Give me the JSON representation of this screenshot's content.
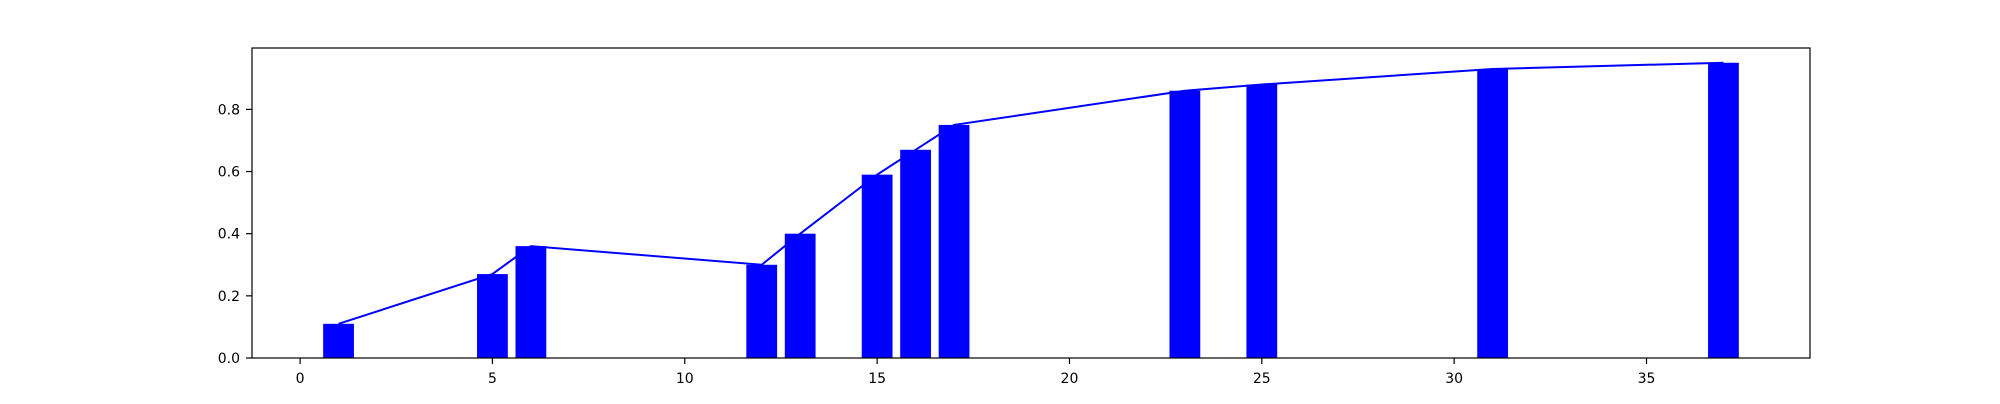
{
  "chart_data": {
    "type": "bar",
    "title": "",
    "xlabel": "",
    "ylabel": "",
    "xlim": [
      -1.25,
      39.25
    ],
    "ylim": [
      0,
      0.9975
    ],
    "grid": false,
    "legend": "none",
    "x_ticks": [
      0,
      5,
      10,
      15,
      20,
      25,
      30,
      35
    ],
    "y_ticks": [
      0.0,
      0.2,
      0.4,
      0.6,
      0.8
    ],
    "x_tick_labels": [
      "0",
      "5",
      "10",
      "15",
      "20",
      "25",
      "30",
      "35"
    ],
    "y_tick_labels": [
      "0.0",
      "0.2",
      "0.4",
      "0.6",
      "0.8"
    ],
    "bar_color": "#0000ff",
    "line_color": "#0000ff",
    "x": [
      1,
      5,
      6,
      12,
      13,
      15,
      16,
      17,
      23,
      25,
      31,
      37
    ],
    "bar_values": [
      0.11,
      0.27,
      0.36,
      0.3,
      0.4,
      0.59,
      0.67,
      0.75,
      0.86,
      0.88,
      0.93,
      0.95
    ],
    "line_values": [
      0.11,
      0.27,
      0.36,
      0.3,
      0.4,
      0.59,
      0.67,
      0.75,
      0.86,
      0.88,
      0.93,
      0.95
    ]
  }
}
